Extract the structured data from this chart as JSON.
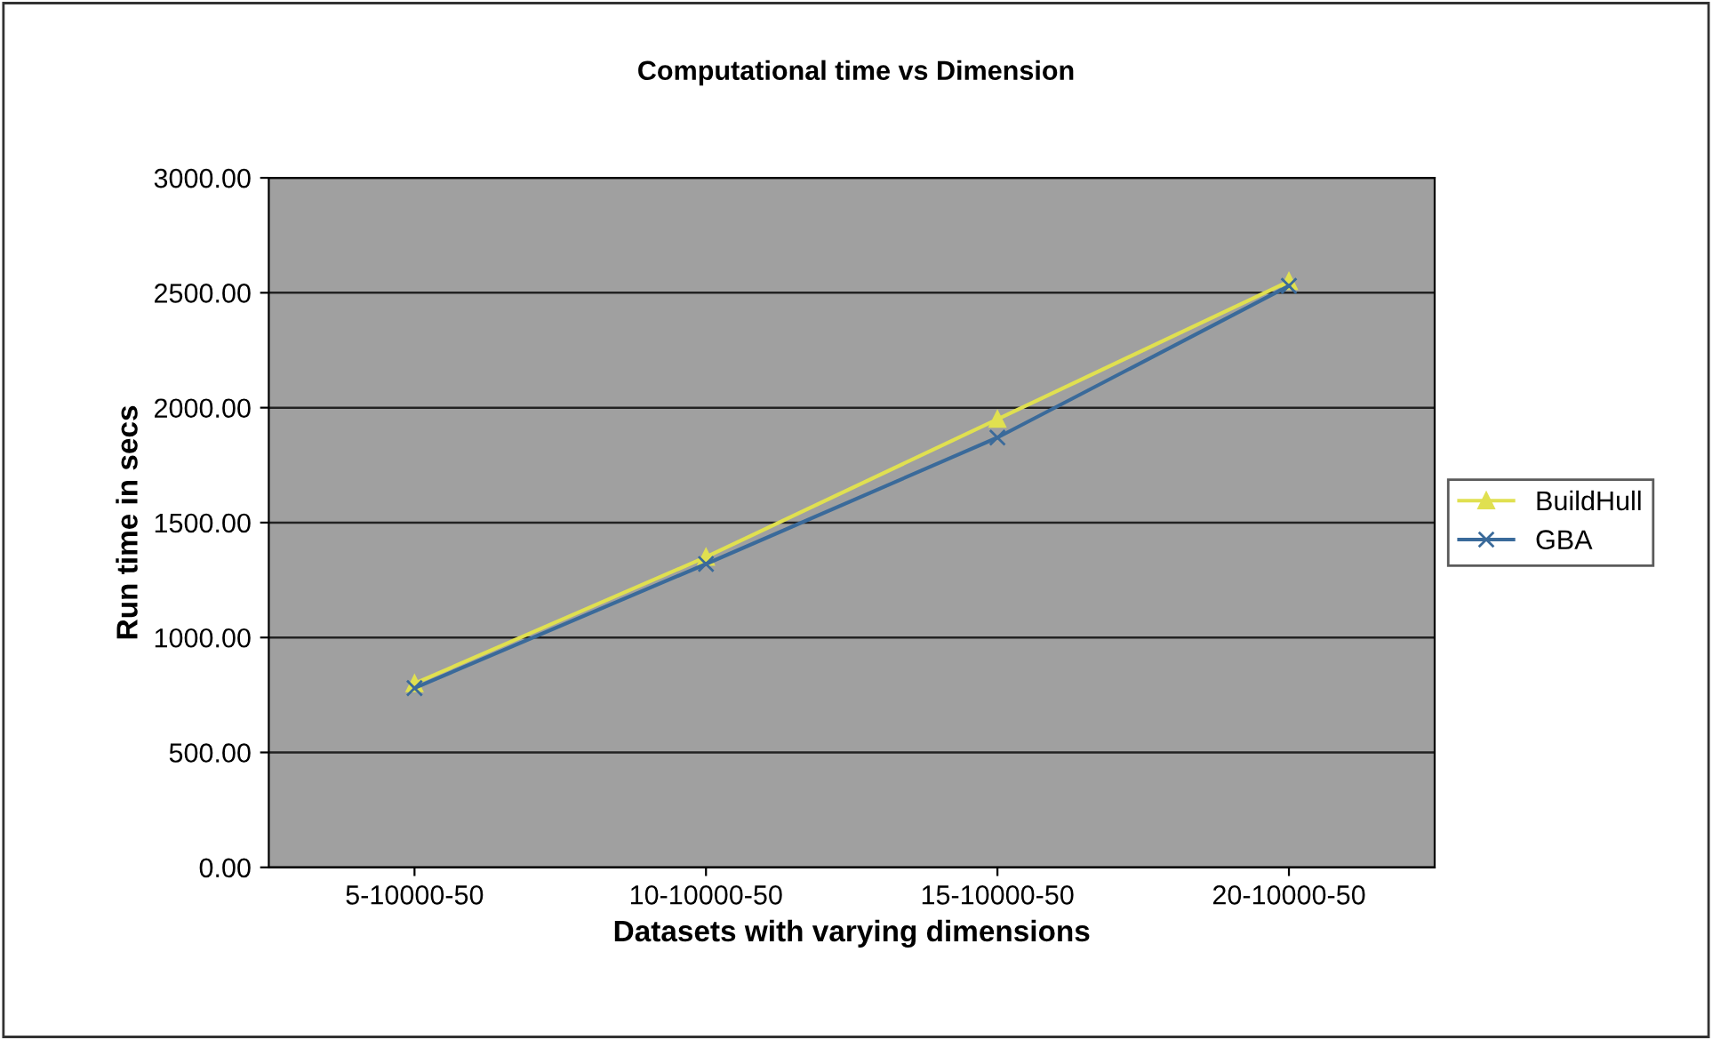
{
  "chart_data": {
    "type": "line",
    "title": "Computational time vs Dimension",
    "xlabel": "Datasets with varying dimensions",
    "ylabel": "Run time in secs",
    "categories": [
      "5-10000-50",
      "10-10000-50",
      "15-10000-50",
      "20-10000-50"
    ],
    "series": [
      {
        "name": "BuildHull",
        "color": "#e0e050",
        "values": [
          800,
          1350,
          1950,
          2550
        ],
        "marker": "triangle"
      },
      {
        "name": "GBA",
        "color": "#3a6a9a",
        "values": [
          780,
          1320,
          1870,
          2530
        ],
        "marker": "cross"
      }
    ],
    "ylim": [
      0,
      3000
    ],
    "yticks": [
      {
        "value": 0,
        "label": "0.00"
      },
      {
        "value": 500,
        "label": "500.00"
      },
      {
        "value": 1000,
        "label": "1000.00"
      },
      {
        "value": 1500,
        "label": "1500.00"
      },
      {
        "value": 2000,
        "label": "2000.00"
      },
      {
        "value": 2500,
        "label": "2500.00"
      },
      {
        "value": 3000,
        "label": "3000.00"
      }
    ],
    "grid": "y",
    "legend": "right"
  }
}
